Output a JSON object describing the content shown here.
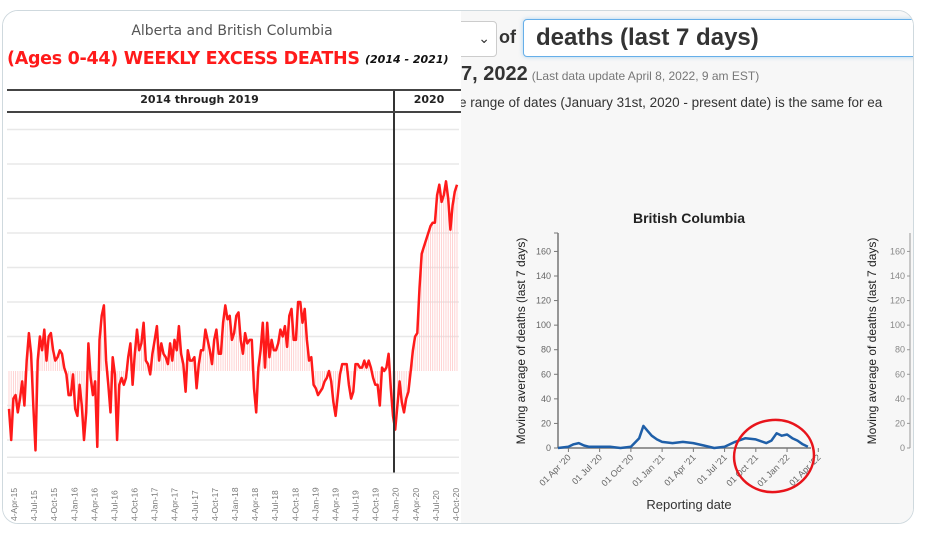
{
  "left_panel": {
    "subtitle": "Alberta and British Columbia",
    "title": "(Ages 0-44) WEEKLY EXCESS DEATHS",
    "range": "(2014 - 2021)",
    "periods": [
      "2014 through 2019",
      "2020"
    ]
  },
  "right_panel": {
    "metric_connector": "of",
    "metric_value": "deaths (last 7 days)",
    "date_fragment": "7, 2022",
    "last_update": "(Last data update April 8, 2022, 9 am EST)",
    "note": "e range of dates (January 31st, 2020 - present date) is the same for ea"
  },
  "colors": {
    "excess_line": "#ff1a1a",
    "bc_line": "#1f5fa8",
    "highlight_circle": "#e8141b"
  },
  "chart_data": [
    {
      "type": "line",
      "title": "(Ages 0-44) WEEKLY EXCESS DEATHS",
      "subtitle": "Alberta and British Columbia",
      "xlabel": "",
      "ylabel": "",
      "x_tick_labels": [
        "4-Apr-15",
        "4-Jul-15",
        "4-Oct-15",
        "4-Jan-16",
        "4-Apr-16",
        "4-Jul-16",
        "4-Oct-16",
        "4-Jan-17",
        "4-Apr-17",
        "4-Jul-17",
        "4-Oct-17",
        "4-Jan-18",
        "4-Apr-18",
        "4-Jul-18",
        "4-Oct-18",
        "4-Jan-19",
        "4-Apr-19",
        "4-Jul-19",
        "4-Oct-19",
        "4-Jan-20",
        "4-Apr-20",
        "4-Jul-20",
        "4-Oct-20"
      ],
      "note": "y axis unlabeled; values are relative to baseline (0) in gridline units",
      "ylim": [
        -2.1,
        7
      ],
      "grid": true,
      "divider_at_tick": "4-Jan-20",
      "series": [
        {
          "name": "weekly excess deaths",
          "values": [
            -1.1,
            -2.0,
            -0.8,
            -0.7,
            -1.2,
            -0.8,
            -0.3,
            -1.0,
            0.3,
            1.1,
            0.5,
            -1.0,
            -2.3,
            0.3,
            1.0,
            0.6,
            1.2,
            0.3,
            1.0,
            1.1,
            0.6,
            0.3,
            0.4,
            0.6,
            0.5,
            0.1,
            -0.1,
            -0.7,
            -0.7,
            -0.1,
            -1.1,
            -1.3,
            -0.4,
            -1.0,
            -2.0,
            -1.2,
            0.8,
            -0.2,
            -0.7,
            -0.3,
            -2.2,
            0.9,
            1.6,
            1.9,
            0.3,
            -0.4,
            -1.2,
            0.4,
            -0.1,
            -2.0,
            -0.4,
            -0.2,
            -0.4,
            -0.2,
            0.4,
            0.8,
            -0.4,
            0.5,
            1.2,
            0.6,
            0.8,
            1.4,
            0.3,
            0.2,
            -0.1,
            0.5,
            0.9,
            1.3,
            0.3,
            0.8,
            0.5,
            0.4,
            0.2,
            0.8,
            0.3,
            0.9,
            0.6,
            1.3,
            0.5,
            0.2,
            -0.6,
            0.6,
            0.3,
            0.3,
            0.4,
            -0.5,
            0.2,
            0.6,
            0.6,
            1.2,
            0.9,
            0.6,
            0.2,
            0.9,
            1.2,
            0.5,
            0.5,
            1.4,
            1.9,
            1.5,
            1.6,
            0.9,
            1.1,
            1.6,
            1.7,
            0.9,
            0.5,
            1.1,
            0.8,
            0.9,
            0.9,
            -0.5,
            -1.2,
            0.1,
            0.6,
            1.4,
            0.1,
            1.4,
            0.4,
            0.9,
            0.6,
            0.6,
            0.8,
            1.2,
            1.0,
            1.3,
            0.7,
            1.6,
            1.8,
            0.9,
            0.9,
            2.0,
            2.0,
            1.4,
            1.8,
            0.9,
            0.3,
            0.4,
            -0.4,
            -0.5,
            -0.7,
            -0.6,
            -0.5,
            -0.3,
            -0.2,
            0.0,
            -0.3,
            -0.9,
            -1.3,
            -0.7,
            -0.1,
            0.2,
            0.2,
            0.2,
            -0.4,
            -0.8,
            -0.6,
            0.2,
            0.2,
            0.1,
            0.1,
            0.3,
            0.1,
            0.3,
            0.1,
            -0.2,
            -0.4,
            -0.4,
            -1.0,
            0.1,
            0.0,
            0.1,
            0.5,
            -0.5,
            -1.3,
            -1.7,
            -1.0,
            -0.3,
            -0.9,
            -1.2,
            -0.8,
            -0.6,
            0.0,
            0.6,
            1.0,
            1.1,
            2.4,
            3.4,
            3.6,
            3.8,
            4.0,
            4.2,
            4.3,
            4.3,
            5.1,
            5.4,
            4.9,
            5.1,
            5.5,
            5.0,
            4.1,
            4.8,
            5.2,
            5.4
          ]
        }
      ]
    },
    {
      "type": "line",
      "title": "British Columbia",
      "xlabel": "Reporting date",
      "ylabel": "Moving average of deaths (last 7 days)",
      "ylim": [
        0,
        175
      ],
      "y_ticks": [
        0,
        20,
        40,
        60,
        80,
        100,
        120,
        140,
        160
      ],
      "x_tick_labels": [
        "01 Apr '20",
        "01 Jul '20",
        "01 Oct '20",
        "01 Jan '21",
        "01 Apr '21",
        "01 Jul '21",
        "01 Oct '21",
        "01 Jan '22",
        "01 Apr '22"
      ],
      "x_range_months": [
        0,
        24.3
      ],
      "annotation": "red circle around Oct '21 - Apr '22",
      "series": [
        {
          "name": "British Columbia",
          "x_month": [
            0,
            1,
            1.5,
            2,
            2.5,
            3,
            4,
            5,
            6,
            7,
            7.8,
            8.2,
            8.6,
            9,
            9.5,
            10,
            11,
            12,
            13,
            14,
            15,
            16,
            17,
            18,
            19,
            20,
            20.5,
            21,
            21.5,
            22,
            22.5,
            23,
            23.5,
            24
          ],
          "values": [
            0,
            1,
            3,
            4,
            2,
            1,
            1,
            1,
            0,
            1,
            8,
            18,
            14,
            10,
            7,
            5,
            4,
            5,
            4,
            2,
            0,
            1,
            5,
            8,
            7,
            4,
            6,
            12,
            10,
            11,
            8,
            6,
            3,
            1
          ]
        }
      ]
    },
    {
      "type": "line",
      "title": "",
      "ylabel": "Moving average of deaths (last 7 days)",
      "y_ticks": [
        0,
        20,
        40,
        60,
        80,
        100,
        120,
        140,
        160
      ],
      "note": "partially visible chart, clipped at right edge"
    }
  ]
}
